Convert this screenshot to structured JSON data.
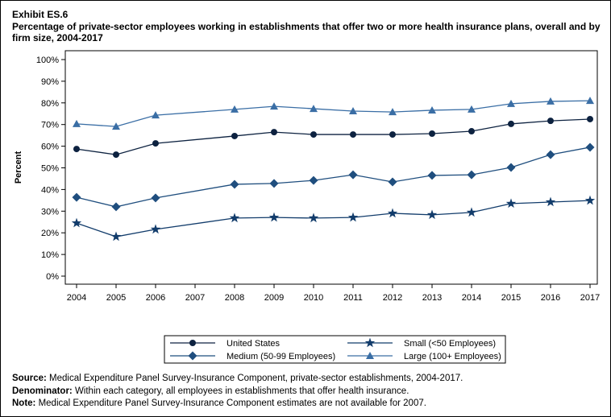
{
  "header": {
    "exhibit": "Exhibit ES.6",
    "title": "Percentage of private-sector employees working in establishments that offer two or more health insurance plans, overall and by firm size, 2004-2017"
  },
  "chart_data": {
    "type": "line",
    "ylabel": "Percent",
    "xlabel": "",
    "ylim": [
      0,
      100
    ],
    "yticks": [
      "0%",
      "10%",
      "20%",
      "30%",
      "40%",
      "50%",
      "60%",
      "70%",
      "80%",
      "90%",
      "100%"
    ],
    "x": [
      2004,
      2005,
      2006,
      2007,
      2008,
      2009,
      2010,
      2011,
      2012,
      2013,
      2014,
      2015,
      2016,
      2017
    ],
    "xticks": [
      "2004",
      "2005",
      "2006",
      "2007",
      "2008",
      "2009",
      "2010",
      "2011",
      "2012",
      "2013",
      "2014",
      "2015",
      "2016",
      "2017"
    ],
    "legend_placement": "bottom",
    "series": [
      {
        "name": "United States",
        "marker": "circle",
        "color": "#0d2240",
        "values": [
          58.7,
          56.1,
          61.3,
          null,
          64.7,
          66.5,
          65.4,
          65.4,
          65.4,
          65.8,
          66.9,
          70.3,
          71.7,
          72.5
        ]
      },
      {
        "name": "Small (<50 Employees)",
        "marker": "star",
        "color": "#123c6b",
        "values": [
          24.5,
          18.2,
          21.6,
          null,
          26.8,
          27.1,
          26.8,
          27.1,
          29.0,
          28.3,
          29.4,
          33.5,
          34.2,
          34.9
        ]
      },
      {
        "name": "Medium (50-99 Employees)",
        "marker": "diamond",
        "color": "#1f4e7e",
        "values": [
          36.4,
          32.0,
          36.1,
          null,
          42.4,
          42.8,
          44.2,
          46.8,
          43.5,
          46.5,
          46.8,
          50.2,
          56.1,
          59.5
        ]
      },
      {
        "name": "Large (100+ Employees)",
        "marker": "triangle",
        "color": "#3a6ea5",
        "values": [
          70.3,
          69.1,
          74.3,
          null,
          77.0,
          78.4,
          77.3,
          76.2,
          75.8,
          76.6,
          77.0,
          79.6,
          80.7,
          81.0
        ]
      }
    ]
  },
  "notes": [
    {
      "label": "Source:",
      "text": " Medical Expenditure Panel Survey-Insurance Component, private-sector establishments, 2004-2017."
    },
    {
      "label": "Denominator:",
      "text": " Within each category, all employees in establishments that offer health insurance."
    },
    {
      "label": "Note:",
      "text": " Medical Expenditure Panel Survey-Insurance Component estimates are not available for 2007."
    }
  ]
}
